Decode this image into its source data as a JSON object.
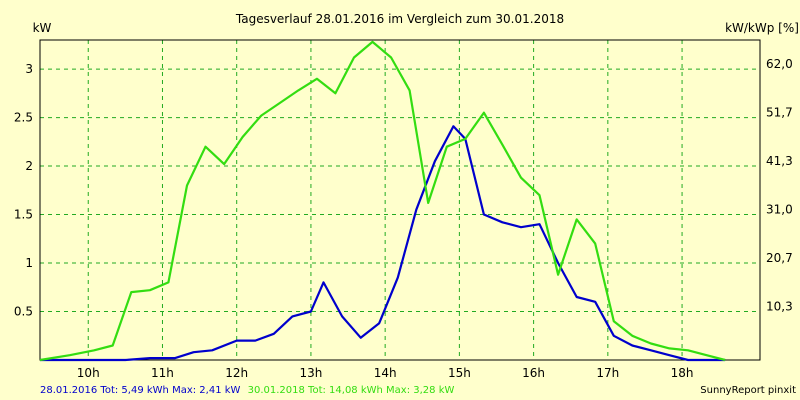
{
  "chart_data": {
    "type": "line",
    "title": "Tagesverlauf 28.01.2016 im Vergleich zum 30.01.2018",
    "ylabel_left": "kW",
    "ylabel_right": "kW/kWp [%]",
    "xlim": [
      9.35,
      19.05
    ],
    "ylim": [
      0,
      3.3
    ],
    "x_ticks": [
      10,
      11,
      12,
      13,
      14,
      15,
      16,
      17,
      18
    ],
    "x_tick_labels": [
      "10h",
      "11h",
      "12h",
      "13h",
      "14h",
      "15h",
      "16h",
      "17h",
      "18h"
    ],
    "y_ticks": [
      0.5,
      1,
      1.5,
      2,
      2.5,
      3
    ],
    "y_tick_labels": [
      "0.5",
      "1",
      "1.5",
      "2",
      "2.5",
      "3"
    ],
    "y2_ticks": [
      0.55,
      1.05,
      1.55,
      2.05,
      2.55,
      3.05
    ],
    "y2_tick_labels": [
      "10,3",
      "20,7",
      "31,0",
      "41,3",
      "51,7",
      "62,0"
    ],
    "grid": true,
    "series": [
      {
        "name": "28.01.2016",
        "color": "#0000cc",
        "points": [
          [
            9.35,
            0.0
          ],
          [
            10.0,
            0.0
          ],
          [
            10.5,
            0.0
          ],
          [
            10.83,
            0.02
          ],
          [
            11.17,
            0.02
          ],
          [
            11.42,
            0.08
          ],
          [
            11.67,
            0.1
          ],
          [
            12.0,
            0.2
          ],
          [
            12.25,
            0.2
          ],
          [
            12.5,
            0.27
          ],
          [
            12.75,
            0.45
          ],
          [
            13.0,
            0.5
          ],
          [
            13.17,
            0.8
          ],
          [
            13.42,
            0.45
          ],
          [
            13.67,
            0.23
          ],
          [
            13.92,
            0.38
          ],
          [
            14.17,
            0.85
          ],
          [
            14.42,
            1.55
          ],
          [
            14.67,
            2.05
          ],
          [
            14.92,
            2.41
          ],
          [
            15.08,
            2.28
          ],
          [
            15.33,
            1.5
          ],
          [
            15.58,
            1.42
          ],
          [
            15.83,
            1.37
          ],
          [
            16.08,
            1.4
          ],
          [
            16.33,
            1.0
          ],
          [
            16.58,
            0.65
          ],
          [
            16.83,
            0.6
          ],
          [
            17.08,
            0.25
          ],
          [
            17.33,
            0.15
          ],
          [
            17.58,
            0.1
          ],
          [
            17.83,
            0.05
          ],
          [
            18.08,
            0.0
          ],
          [
            18.58,
            0.0
          ]
        ]
      },
      {
        "name": "30.01.2018",
        "color": "#33dd11",
        "points": [
          [
            9.35,
            0.0
          ],
          [
            9.75,
            0.05
          ],
          [
            10.08,
            0.1
          ],
          [
            10.33,
            0.15
          ],
          [
            10.58,
            0.7
          ],
          [
            10.83,
            0.72
          ],
          [
            11.08,
            0.8
          ],
          [
            11.33,
            1.8
          ],
          [
            11.58,
            2.2
          ],
          [
            11.83,
            2.02
          ],
          [
            12.08,
            2.3
          ],
          [
            12.33,
            2.52
          ],
          [
            12.58,
            2.65
          ],
          [
            12.83,
            2.78
          ],
          [
            13.08,
            2.9
          ],
          [
            13.33,
            2.75
          ],
          [
            13.58,
            3.12
          ],
          [
            13.83,
            3.28
          ],
          [
            14.08,
            3.12
          ],
          [
            14.33,
            2.78
          ],
          [
            14.58,
            1.62
          ],
          [
            14.83,
            2.2
          ],
          [
            15.08,
            2.28
          ],
          [
            15.33,
            2.55
          ],
          [
            15.58,
            2.22
          ],
          [
            15.83,
            1.88
          ],
          [
            16.08,
            1.7
          ],
          [
            16.33,
            0.88
          ],
          [
            16.58,
            1.45
          ],
          [
            16.83,
            1.2
          ],
          [
            17.08,
            0.4
          ],
          [
            17.33,
            0.25
          ],
          [
            17.58,
            0.17
          ],
          [
            17.83,
            0.12
          ],
          [
            18.08,
            0.1
          ],
          [
            18.33,
            0.05
          ],
          [
            18.58,
            0.0
          ]
        ]
      }
    ]
  },
  "footer": {
    "series1_summary": "28.01.2016 Tot: 5,49 kWh Max: 2,41 kW",
    "series2_summary": "30.01.2018 Tot: 14,08 kWh Max: 3,28 kW",
    "credit": "SunnyReport pinxit",
    "series1_color": "#0000cc",
    "series2_color": "#33dd11"
  }
}
